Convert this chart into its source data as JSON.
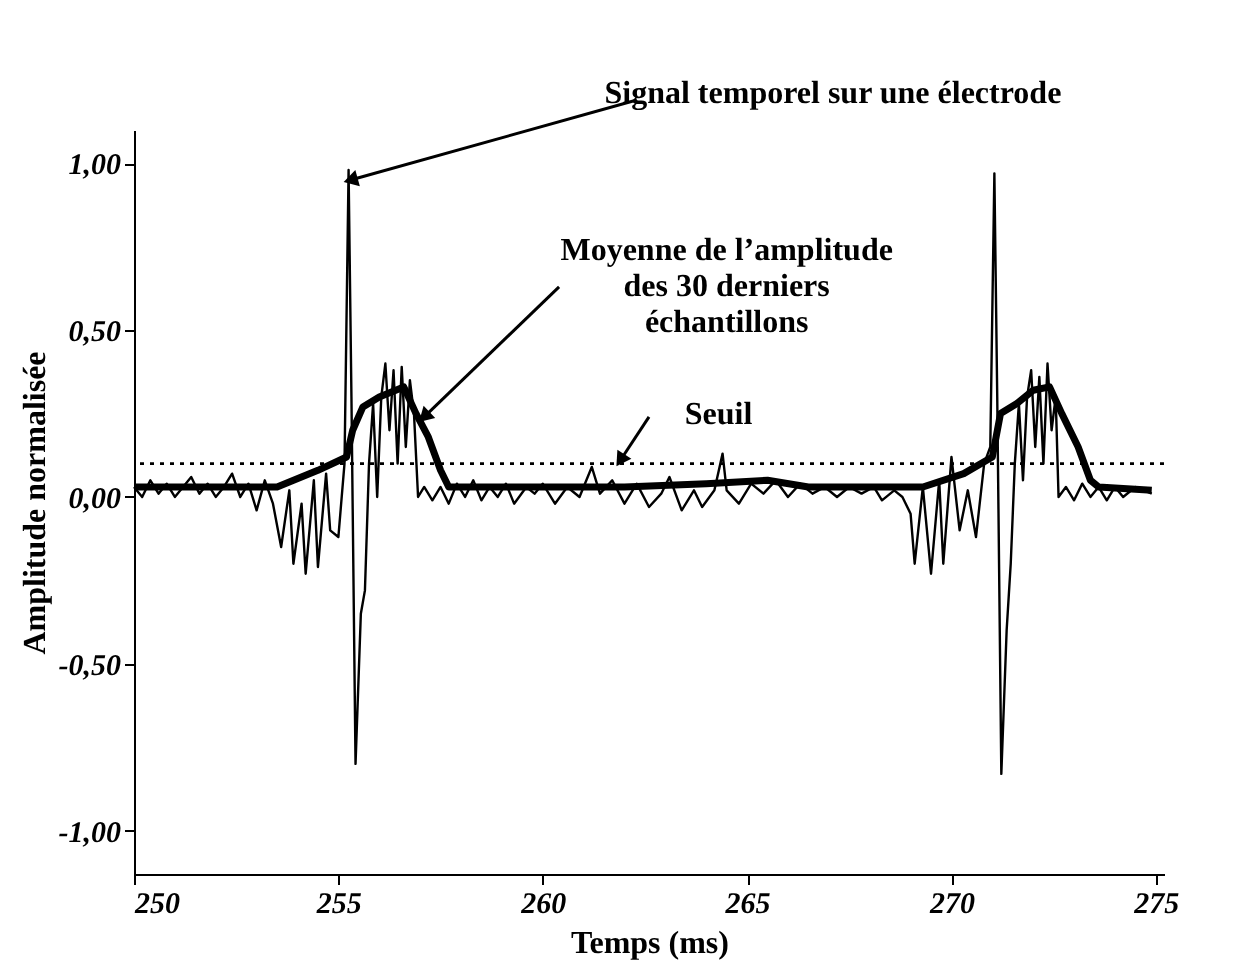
{
  "chart_data": {
    "type": "line",
    "xlabel": "Temps (ms)",
    "ylabel": "Amplitude normalisée",
    "xlim": [
      250,
      275.2
    ],
    "xticks": [
      250,
      255,
      260,
      265,
      270,
      275
    ],
    "ylim": [
      -1.13,
      1.1
    ],
    "yticks": [
      {
        "value": -1,
        "label": "-1,00"
      },
      {
        "value": -0.5,
        "label": "-0,50"
      },
      {
        "value": 0,
        "label": "0,00"
      },
      {
        "value": 0.5,
        "label": "0,50"
      },
      {
        "value": 1,
        "label": "1,00"
      }
    ],
    "grid": false,
    "marker": "none",
    "line_style": "solid",
    "series": [
      {
        "color": "#000000",
        "x": [
          250.0,
          250.2,
          250.4,
          250.6,
          250.8,
          251.0,
          251.2,
          251.4,
          251.6,
          251.8,
          252.0,
          252.2,
          252.4,
          252.6,
          252.8,
          253.0,
          253.2,
          253.4,
          253.6,
          253.8,
          253.9,
          254.1,
          254.2,
          254.4,
          254.5,
          254.7,
          254.8,
          255.0,
          255.15,
          255.25,
          255.32,
          255.42,
          255.55,
          255.65,
          255.75,
          255.85,
          255.95,
          256.05,
          256.15,
          256.25,
          256.35,
          256.45,
          256.55,
          256.65,
          256.75,
          256.85,
          256.95,
          257.1,
          257.3,
          257.5,
          257.7,
          257.9,
          258.1,
          258.3,
          258.5,
          258.7,
          258.9,
          259.1,
          259.3,
          259.6,
          259.8,
          260.0,
          260.3,
          260.6,
          260.9,
          261.2,
          261.4,
          261.7,
          262.0,
          262.3,
          262.6,
          262.9,
          263.1,
          263.4,
          263.7,
          263.9,
          264.2,
          264.4,
          264.5,
          264.8,
          265.1,
          265.4,
          265.7,
          266.0,
          266.3,
          266.6,
          266.9,
          267.2,
          267.5,
          267.8,
          268.1,
          268.3,
          268.6,
          268.8,
          269.0,
          269.1,
          269.3,
          269.5,
          269.7,
          269.8,
          270.0,
          270.2,
          270.4,
          270.6,
          270.8,
          270.95,
          271.05,
          271.12,
          271.22,
          271.35,
          271.45,
          271.55,
          271.65,
          271.75,
          271.85,
          271.95,
          272.05,
          272.15,
          272.25,
          272.35,
          272.45,
          272.55,
          272.62,
          272.8,
          273.0,
          273.2,
          273.4,
          273.6,
          273.8,
          274.0,
          274.2,
          274.5,
          274.9
        ],
        "values": [
          0.03,
          0.0,
          0.05,
          0.01,
          0.04,
          0.0,
          0.03,
          0.06,
          0.01,
          0.04,
          0.0,
          0.03,
          0.07,
          0.0,
          0.04,
          -0.04,
          0.05,
          -0.02,
          -0.15,
          0.02,
          -0.2,
          -0.02,
          -0.23,
          0.05,
          -0.21,
          0.07,
          -0.1,
          -0.12,
          0.1,
          0.98,
          0.3,
          -0.8,
          -0.35,
          -0.28,
          0.1,
          0.28,
          0.0,
          0.3,
          0.4,
          0.2,
          0.38,
          0.1,
          0.39,
          0.15,
          0.35,
          0.25,
          0.0,
          0.03,
          -0.01,
          0.03,
          -0.02,
          0.04,
          0.0,
          0.05,
          -0.01,
          0.03,
          0.0,
          0.04,
          -0.02,
          0.03,
          0.01,
          0.04,
          -0.02,
          0.03,
          0.0,
          0.09,
          0.01,
          0.05,
          -0.02,
          0.04,
          -0.03,
          0.01,
          0.06,
          -0.04,
          0.02,
          -0.03,
          0.02,
          0.13,
          0.02,
          -0.02,
          0.04,
          0.01,
          0.05,
          0.0,
          0.04,
          0.01,
          0.03,
          0.0,
          0.03,
          0.01,
          0.03,
          -0.01,
          0.02,
          0.0,
          -0.05,
          -0.2,
          0.03,
          -0.23,
          0.05,
          -0.2,
          0.12,
          -0.1,
          0.02,
          -0.12,
          0.1,
          0.15,
          0.97,
          0.3,
          -0.83,
          -0.4,
          -0.2,
          0.1,
          0.28,
          0.05,
          0.3,
          0.38,
          0.15,
          0.36,
          0.1,
          0.4,
          0.2,
          0.3,
          0.0,
          0.03,
          -0.01,
          0.04,
          0.0,
          0.03,
          -0.01,
          0.03,
          0.0,
          0.03,
          0.01
        ]
      },
      {
        "color": "#000000",
        "x": [
          250.0,
          253.5,
          254.5,
          255.2,
          255.35,
          255.6,
          256.0,
          256.6,
          256.9,
          257.2,
          257.5,
          257.7,
          262.0,
          264.0,
          265.5,
          266.5,
          269.3,
          270.3,
          271.0,
          271.2,
          271.6,
          272.0,
          272.4,
          272.7,
          273.1,
          273.4,
          273.6,
          274.9
        ],
        "values": [
          0.03,
          0.03,
          0.08,
          0.12,
          0.2,
          0.27,
          0.3,
          0.33,
          0.25,
          0.18,
          0.08,
          0.03,
          0.03,
          0.04,
          0.05,
          0.03,
          0.03,
          0.07,
          0.12,
          0.25,
          0.28,
          0.32,
          0.33,
          0.25,
          0.15,
          0.05,
          0.03,
          0.02
        ]
      }
    ],
    "ref_lines": [
      {
        "axis": "y",
        "value": 0.1,
        "color": "#000000",
        "line_style": "dotted"
      }
    ],
    "annotations": [
      {
        "text": "Signal temporel sur une électrode",
        "x": 255.3,
        "y": 0.95
      },
      {
        "text": "Moyenne de l’amplitude\ndes 30 derniers\néchantillons",
        "x": 257.1,
        "y": 0.24
      },
      {
        "text": "Seuil",
        "x": 261.9,
        "y": 0.11
      }
    ]
  }
}
